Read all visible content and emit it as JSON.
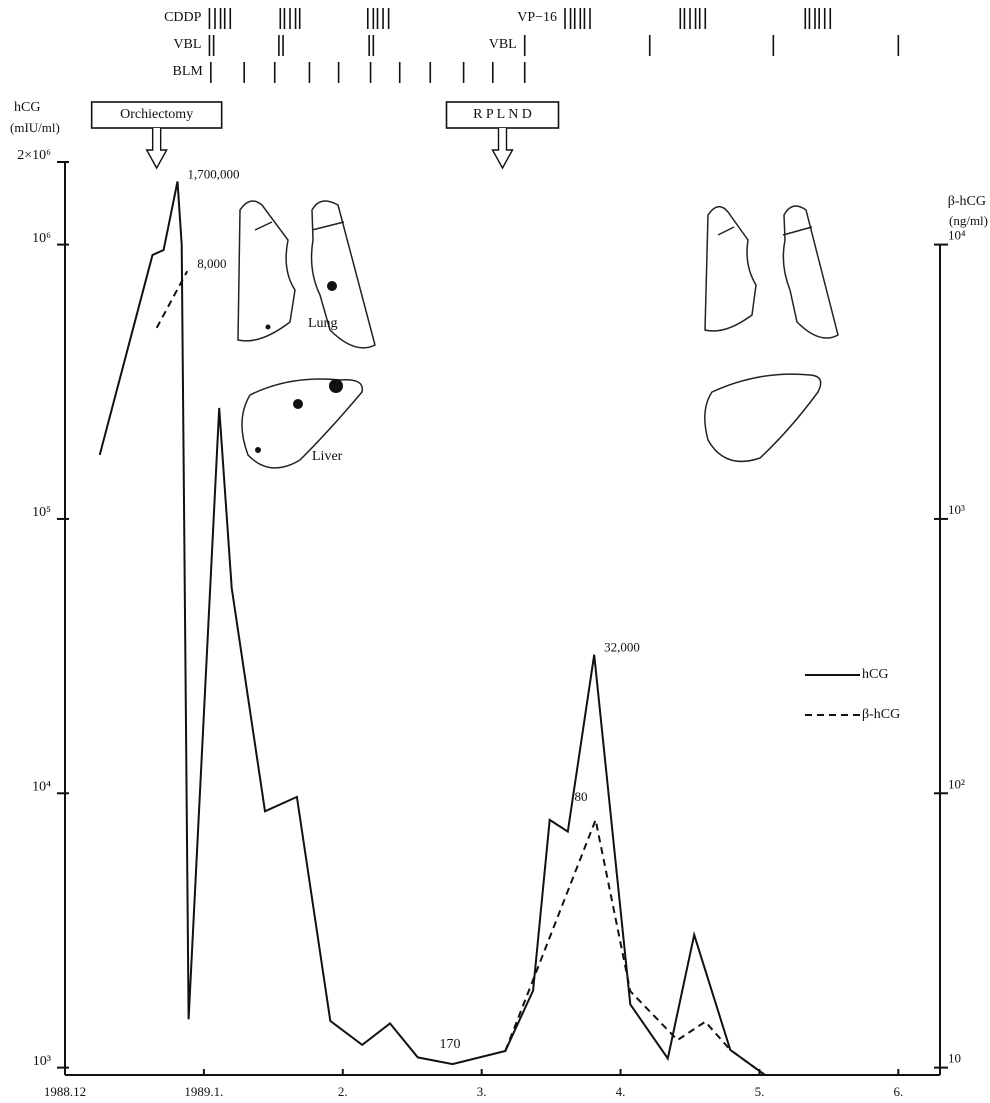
{
  "chart_data": {
    "type": "line",
    "y_label": [
      "hCG",
      "(mIU/ml)"
    ],
    "y2_label": [
      "β-hCG",
      "(ng/ml)"
    ],
    "yscale": "log",
    "y2scale": "log",
    "xlim": [
      0,
      6.3
    ],
    "ylim": [
      940,
      2000000
    ],
    "y2lim": [
      9.4,
      20000
    ],
    "xticks": [
      {
        "value": 0,
        "label": "1988.12"
      },
      {
        "value": 1,
        "label": "1989.1."
      },
      {
        "value": 2,
        "label": "2."
      },
      {
        "value": 3,
        "label": "3."
      },
      {
        "value": 4,
        "label": "4."
      },
      {
        "value": 5,
        "label": "5."
      },
      {
        "value": 6,
        "label": "6."
      }
    ],
    "yticks": [
      {
        "value": 1000,
        "label": "10³"
      },
      {
        "value": 10000,
        "label": "10⁴"
      },
      {
        "value": 100000,
        "label": "10⁵"
      },
      {
        "value": 1000000,
        "label": "10⁶"
      },
      {
        "value": 2000000,
        "label": "2×10⁶"
      }
    ],
    "y2ticks": [
      10,
      {
        "value": 100,
        "label": "10²"
      },
      {
        "value": 1000,
        "label": "10³"
      },
      {
        "value": 10000,
        "label": "10⁴"
      }
    ],
    "legend": "right",
    "series": [
      {
        "name": "hCG",
        "color": "#111",
        "dashed": false,
        "x": [
          0.25,
          0.63,
          0.71,
          0.81,
          0.84,
          0.89,
          1.11,
          1.2,
          1.44,
          1.67,
          1.91,
          2.14,
          2.34,
          2.54,
          2.79,
          3.17,
          3.37,
          3.49,
          3.62,
          3.81,
          4.07,
          4.34,
          4.53,
          4.79,
          5.04
        ],
        "values": [
          171000,
          916000,
          955000,
          1700000,
          1000000,
          1500,
          254000,
          56000,
          8600,
          9700,
          1480,
          1210,
          1450,
          1090,
          1030,
          1150,
          1910,
          8000,
          7250,
          32000,
          1700,
          1080,
          3050,
          1160,
          940
        ],
        "value_labels": [
          null,
          null,
          null,
          "1,700,000",
          null,
          null,
          null,
          null,
          null,
          null,
          null,
          null,
          null,
          null,
          null,
          null,
          null,
          null,
          null,
          "32,000",
          null,
          null,
          null,
          null,
          null
        ]
      },
      {
        "name": "β-hCG",
        "color": "#111",
        "dashed": true,
        "axis": "y2",
        "x": [
          0.66,
          0.88,
          null,
          3.17,
          3.82,
          4.07,
          4.41,
          4.61,
          4.79,
          5.04
        ],
        "values": [
          4970,
          8000,
          null,
          11.5,
          80,
          19,
          12.6,
          14.7,
          11.6,
          9.4
        ],
        "value_labels": [
          null,
          "8,000",
          null,
          null,
          "80",
          null,
          null,
          null,
          null,
          null
        ]
      }
    ],
    "annotations": [
      "170"
    ],
    "events": [
      {
        "label": "Orchiectomy",
        "x": 0.66
      },
      {
        "label": "R P L N D",
        "x": 3.15
      }
    ],
    "schedule": [
      {
        "drug": "CDDP",
        "x": [
          1.04,
          1.08,
          1.12,
          1.15,
          1.19,
          1.55,
          1.58,
          1.62,
          1.66,
          1.69,
          2.18,
          2.22,
          2.25,
          2.29,
          2.33
        ]
      },
      {
        "drug": "VBL",
        "x": [
          1.04,
          1.07,
          1.54,
          1.57,
          2.19,
          2.22
        ]
      },
      {
        "drug": "BLM",
        "x": [
          1.05,
          1.29,
          1.51,
          1.76,
          1.97,
          2.2,
          2.41,
          2.63,
          2.87,
          3.08,
          3.31
        ]
      },
      {
        "drug": "VP−16",
        "x": [
          3.6,
          3.64,
          3.67,
          3.71,
          3.74,
          3.78,
          4.43,
          4.46,
          4.5,
          4.54,
          4.57,
          4.61,
          5.33,
          5.36,
          5.4,
          5.43,
          5.47,
          5.51
        ]
      },
      {
        "drug": "VBL",
        "x": [
          3.31,
          4.21,
          5.1,
          6.0
        ]
      }
    ],
    "illustration_labels": [
      "Lung",
      "Liver"
    ]
  }
}
